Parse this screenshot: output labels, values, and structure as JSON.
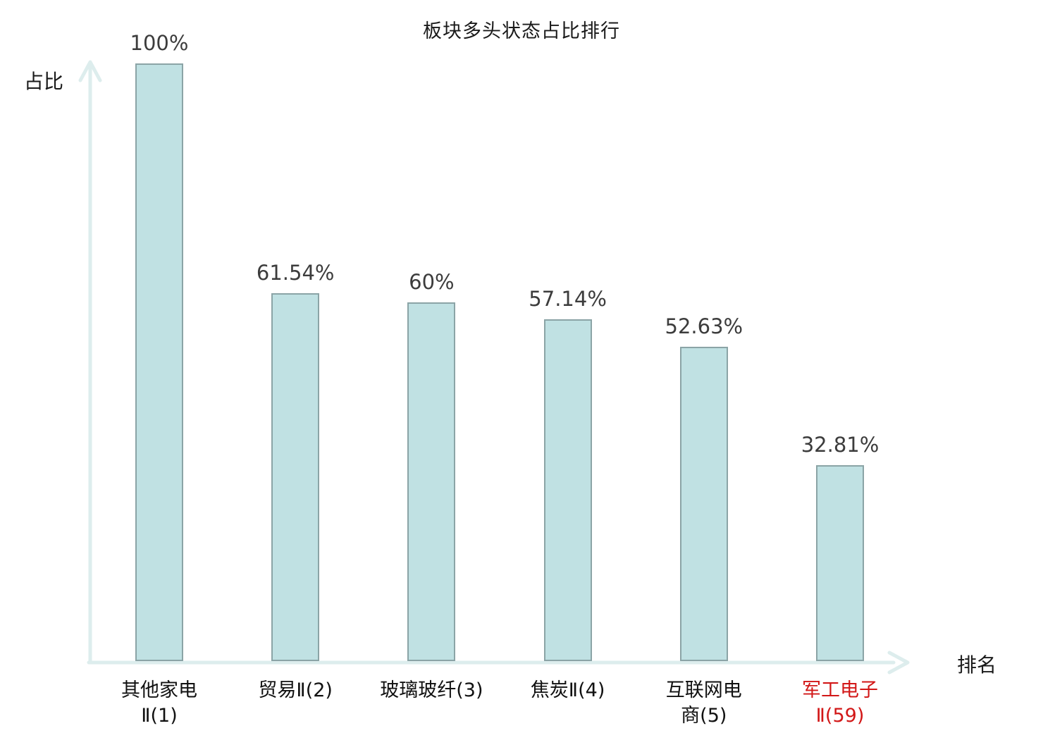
{
  "title": "板块多头状态占比排行",
  "colors": {
    "bar_fill": "#c0e1e3",
    "bar_border": "#8ba4a6",
    "axis": "#ddeded",
    "value_label": "#3c3c3c",
    "category_label": "#111111",
    "highlight": "#d21717",
    "background": "#ffffff"
  },
  "chart_data": {
    "type": "bar",
    "title": "板块多头状态占比排行",
    "xlabel": "排名",
    "ylabel": "占比",
    "ylim": [
      0,
      100
    ],
    "grid": false,
    "legend": null,
    "categories": [
      "其他家电Ⅱ(1)",
      "贸易Ⅱ(2)",
      "玻璃玻纤(3)",
      "焦炭Ⅱ(4)",
      "互联网电商(5)",
      "军工电子Ⅱ(59)"
    ],
    "category_lines": [
      [
        "其他家电",
        "Ⅱ(1)"
      ],
      [
        "贸易Ⅱ(2)"
      ],
      [
        "玻璃玻纤(3)"
      ],
      [
        "焦炭Ⅱ(4)"
      ],
      [
        "互联网电",
        "商(5)"
      ],
      [
        "军工电子",
        "Ⅱ(59)"
      ]
    ],
    "values": [
      100,
      61.54,
      60,
      57.14,
      52.63,
      32.81
    ],
    "value_labels": [
      "100%",
      "61.54%",
      "60%",
      "57.14%",
      "52.63%",
      "32.81%"
    ],
    "highlight_index": 5
  }
}
